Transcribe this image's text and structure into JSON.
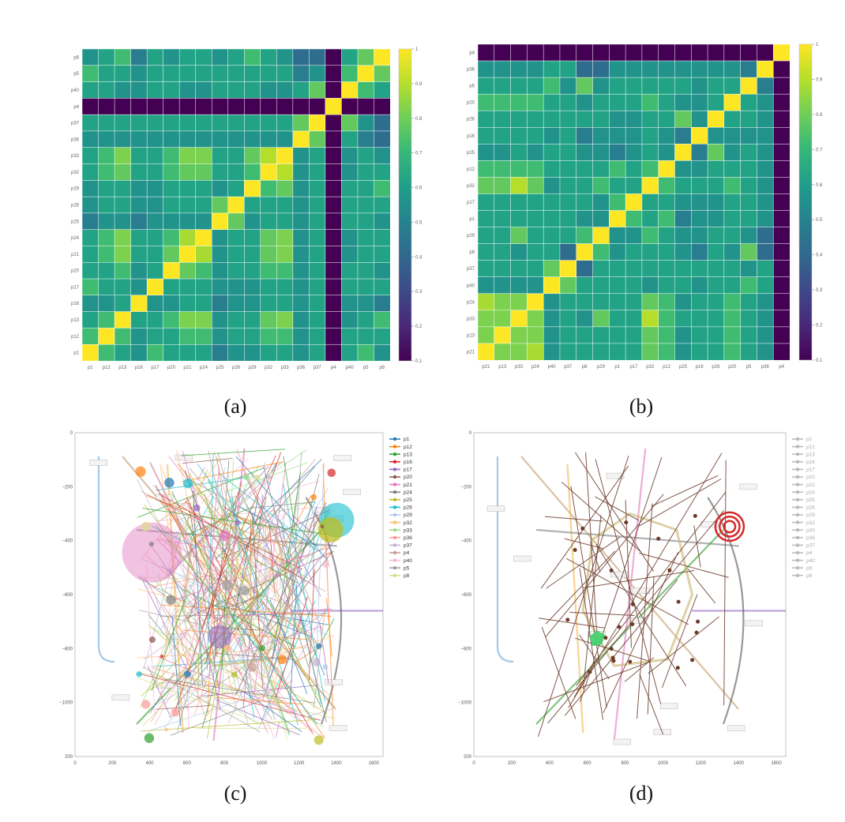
{
  "captions": {
    "a": "(a)",
    "b": "(b)",
    "c": "(c)",
    "d": "(d)"
  },
  "colormap": [
    "#440154",
    "#482878",
    "#3e4989",
    "#31688e",
    "#26828e",
    "#1f9e89",
    "#35b779",
    "#6ece58",
    "#b5de2b",
    "#fde725"
  ],
  "chart_data": [
    {
      "type": "heatmap",
      "x_labels": [
        "p1",
        "p12",
        "p13",
        "p16",
        "p17",
        "p20",
        "p21",
        "p24",
        "p25",
        "p26",
        "p29",
        "p32",
        "p33",
        "p36",
        "p37",
        "p4",
        "p40",
        "p5",
        "p8"
      ],
      "y_labels": [
        "p8",
        "p5",
        "p40",
        "p4",
        "p37",
        "p36",
        "p33",
        "p32",
        "p29",
        "p26",
        "p25",
        "p24",
        "p21",
        "p20",
        "p17",
        "p16",
        "p13",
        "p12",
        "p1"
      ],
      "colorbar": {
        "min": 0.1,
        "max": 1,
        "ticks": [
          "1",
          "0.9",
          "0.8",
          "0.7",
          "0.6",
          "0.5",
          "0.4",
          "0.3",
          "0.2",
          "0.1"
        ]
      },
      "values": [
        [
          0.56,
          0.62,
          0.72,
          0.48,
          0.62,
          0.56,
          0.62,
          0.62,
          0.56,
          0.62,
          0.72,
          0.62,
          0.56,
          0.42,
          0.42,
          0.1,
          0.62,
          0.78,
          1.0
        ],
        [
          0.72,
          0.62,
          0.62,
          0.56,
          0.62,
          0.62,
          0.62,
          0.62,
          0.62,
          0.62,
          0.62,
          0.62,
          0.62,
          0.48,
          0.56,
          0.1,
          0.72,
          1.0,
          0.78
        ],
        [
          0.62,
          0.62,
          0.56,
          0.56,
          0.62,
          0.62,
          0.56,
          0.56,
          0.62,
          0.62,
          0.62,
          0.56,
          0.56,
          0.62,
          0.78,
          0.1,
          1.0,
          0.72,
          0.62
        ],
        [
          0.1,
          0.1,
          0.1,
          0.1,
          0.1,
          0.1,
          0.1,
          0.1,
          0.1,
          0.1,
          0.1,
          0.1,
          0.1,
          0.1,
          0.1,
          1.0,
          0.1,
          0.1,
          0.1
        ],
        [
          0.62,
          0.62,
          0.62,
          0.62,
          0.62,
          0.62,
          0.62,
          0.62,
          0.62,
          0.62,
          0.62,
          0.62,
          0.62,
          0.78,
          1.0,
          0.1,
          0.78,
          0.56,
          0.42
        ],
        [
          0.56,
          0.56,
          0.56,
          0.56,
          0.56,
          0.56,
          0.56,
          0.56,
          0.56,
          0.56,
          0.56,
          0.56,
          0.56,
          1.0,
          0.78,
          0.1,
          0.62,
          0.48,
          0.42
        ],
        [
          0.62,
          0.72,
          0.82,
          0.62,
          0.62,
          0.72,
          0.82,
          0.82,
          0.62,
          0.62,
          0.78,
          0.9,
          1.0,
          0.56,
          0.62,
          0.1,
          0.56,
          0.62,
          0.56
        ],
        [
          0.62,
          0.72,
          0.78,
          0.62,
          0.62,
          0.72,
          0.78,
          0.78,
          0.62,
          0.62,
          0.72,
          1.0,
          0.9,
          0.56,
          0.62,
          0.1,
          0.56,
          0.62,
          0.62
        ],
        [
          0.56,
          0.62,
          0.62,
          0.56,
          0.56,
          0.62,
          0.62,
          0.62,
          0.56,
          0.62,
          1.0,
          0.72,
          0.78,
          0.56,
          0.62,
          0.1,
          0.62,
          0.62,
          0.72
        ],
        [
          0.56,
          0.62,
          0.62,
          0.56,
          0.56,
          0.62,
          0.62,
          0.62,
          0.78,
          1.0,
          0.62,
          0.62,
          0.62,
          0.56,
          0.62,
          0.1,
          0.62,
          0.62,
          0.62
        ],
        [
          0.48,
          0.56,
          0.56,
          0.48,
          0.56,
          0.56,
          0.56,
          0.56,
          1.0,
          0.78,
          0.56,
          0.62,
          0.62,
          0.56,
          0.62,
          0.1,
          0.62,
          0.62,
          0.56
        ],
        [
          0.62,
          0.72,
          0.82,
          0.62,
          0.62,
          0.72,
          0.88,
          1.0,
          0.56,
          0.62,
          0.62,
          0.78,
          0.82,
          0.56,
          0.62,
          0.1,
          0.56,
          0.62,
          0.62
        ],
        [
          0.62,
          0.72,
          0.82,
          0.62,
          0.62,
          0.78,
          1.0,
          0.88,
          0.56,
          0.62,
          0.62,
          0.78,
          0.82,
          0.56,
          0.62,
          0.1,
          0.56,
          0.62,
          0.62
        ],
        [
          0.62,
          0.62,
          0.72,
          0.56,
          0.62,
          1.0,
          0.78,
          0.72,
          0.56,
          0.62,
          0.62,
          0.72,
          0.72,
          0.56,
          0.62,
          0.1,
          0.62,
          0.62,
          0.56
        ],
        [
          0.72,
          0.62,
          0.62,
          0.56,
          1.0,
          0.62,
          0.62,
          0.62,
          0.56,
          0.56,
          0.56,
          0.62,
          0.62,
          0.56,
          0.62,
          0.1,
          0.62,
          0.62,
          0.62
        ],
        [
          0.56,
          0.56,
          0.62,
          1.0,
          0.56,
          0.56,
          0.62,
          0.62,
          0.48,
          0.56,
          0.56,
          0.62,
          0.62,
          0.56,
          0.62,
          0.1,
          0.56,
          0.56,
          0.48
        ],
        [
          0.62,
          0.72,
          1.0,
          0.62,
          0.62,
          0.72,
          0.82,
          0.82,
          0.56,
          0.62,
          0.62,
          0.78,
          0.82,
          0.56,
          0.62,
          0.1,
          0.56,
          0.62,
          0.72
        ],
        [
          0.72,
          1.0,
          0.72,
          0.56,
          0.62,
          0.62,
          0.72,
          0.72,
          0.56,
          0.62,
          0.62,
          0.72,
          0.72,
          0.56,
          0.62,
          0.1,
          0.62,
          0.62,
          0.62
        ],
        [
          1.0,
          0.72,
          0.62,
          0.56,
          0.72,
          0.62,
          0.62,
          0.62,
          0.48,
          0.56,
          0.56,
          0.62,
          0.62,
          0.56,
          0.62,
          0.1,
          0.62,
          0.72,
          0.56
        ]
      ]
    },
    {
      "type": "heatmap",
      "x_labels": [
        "p21",
        "p13",
        "p33",
        "p24",
        "p40",
        "p37",
        "p8",
        "p29",
        "p1",
        "p17",
        "p32",
        "p12",
        "p25",
        "p16",
        "p26",
        "p20",
        "p5",
        "p36",
        "p4"
      ],
      "y_labels": [
        "p4",
        "p36",
        "p5",
        "p20",
        "p26",
        "p16",
        "p25",
        "p12",
        "p32",
        "p17",
        "p1",
        "p29",
        "p8",
        "p37",
        "p40",
        "p24",
        "p33",
        "p13",
        "p21"
      ],
      "colorbar": {
        "min": 0.1,
        "max": 1,
        "ticks": [
          "1",
          "0.9",
          "0.8",
          "0.7",
          "0.6",
          "0.5",
          "0.4",
          "0.3",
          "0.2",
          "0.1"
        ]
      },
      "values": [
        [
          0.1,
          0.1,
          0.1,
          0.1,
          0.1,
          0.1,
          0.1,
          0.1,
          0.1,
          0.1,
          0.1,
          0.1,
          0.1,
          0.1,
          0.1,
          0.1,
          0.1,
          0.1,
          1.0
        ],
        [
          0.56,
          0.56,
          0.56,
          0.56,
          0.62,
          0.62,
          0.42,
          0.42,
          0.56,
          0.56,
          0.56,
          0.56,
          0.56,
          0.56,
          0.56,
          0.56,
          0.48,
          1.0,
          0.1
        ],
        [
          0.62,
          0.62,
          0.62,
          0.62,
          0.72,
          0.56,
          0.78,
          0.56,
          0.62,
          0.62,
          0.62,
          0.62,
          0.62,
          0.56,
          0.62,
          0.62,
          1.0,
          0.48,
          0.1
        ],
        [
          0.72,
          0.72,
          0.72,
          0.72,
          0.62,
          0.62,
          0.56,
          0.62,
          0.62,
          0.62,
          0.72,
          0.62,
          0.56,
          0.56,
          0.62,
          1.0,
          0.62,
          0.56,
          0.1
        ],
        [
          0.62,
          0.62,
          0.62,
          0.62,
          0.62,
          0.62,
          0.62,
          0.62,
          0.56,
          0.56,
          0.62,
          0.62,
          0.78,
          0.56,
          1.0,
          0.62,
          0.62,
          0.56,
          0.1
        ],
        [
          0.62,
          0.62,
          0.62,
          0.62,
          0.56,
          0.62,
          0.48,
          0.56,
          0.56,
          0.56,
          0.62,
          0.56,
          0.48,
          1.0,
          0.56,
          0.56,
          0.56,
          0.56,
          0.1
        ],
        [
          0.56,
          0.56,
          0.62,
          0.56,
          0.62,
          0.62,
          0.56,
          0.56,
          0.48,
          0.56,
          0.62,
          0.56,
          1.0,
          0.48,
          0.78,
          0.56,
          0.62,
          0.56,
          0.1
        ],
        [
          0.72,
          0.72,
          0.72,
          0.72,
          0.62,
          0.62,
          0.62,
          0.62,
          0.72,
          0.62,
          0.72,
          1.0,
          0.56,
          0.56,
          0.62,
          0.62,
          0.62,
          0.56,
          0.1
        ],
        [
          0.78,
          0.78,
          0.9,
          0.78,
          0.56,
          0.62,
          0.62,
          0.72,
          0.62,
          0.62,
          1.0,
          0.72,
          0.62,
          0.62,
          0.62,
          0.72,
          0.62,
          0.56,
          0.1
        ],
        [
          0.62,
          0.62,
          0.62,
          0.62,
          0.62,
          0.62,
          0.62,
          0.56,
          0.72,
          1.0,
          0.62,
          0.62,
          0.56,
          0.56,
          0.56,
          0.62,
          0.62,
          0.56,
          0.1
        ],
        [
          0.62,
          0.62,
          0.62,
          0.62,
          0.62,
          0.62,
          0.56,
          0.56,
          1.0,
          0.72,
          0.62,
          0.72,
          0.48,
          0.56,
          0.56,
          0.62,
          0.62,
          0.56,
          0.1
        ],
        [
          0.62,
          0.62,
          0.78,
          0.62,
          0.62,
          0.62,
          0.72,
          1.0,
          0.56,
          0.56,
          0.72,
          0.62,
          0.56,
          0.56,
          0.62,
          0.62,
          0.56,
          0.42,
          0.1
        ],
        [
          0.62,
          0.62,
          0.56,
          0.62,
          0.62,
          0.42,
          1.0,
          0.72,
          0.56,
          0.62,
          0.62,
          0.62,
          0.56,
          0.48,
          0.62,
          0.56,
          0.78,
          0.42,
          0.1
        ],
        [
          0.62,
          0.62,
          0.62,
          0.62,
          0.78,
          1.0,
          0.42,
          0.62,
          0.62,
          0.62,
          0.62,
          0.62,
          0.62,
          0.62,
          0.62,
          0.62,
          0.56,
          0.62,
          0.1
        ],
        [
          0.56,
          0.56,
          0.56,
          0.56,
          1.0,
          0.78,
          0.62,
          0.62,
          0.62,
          0.62,
          0.56,
          0.62,
          0.62,
          0.56,
          0.62,
          0.62,
          0.72,
          0.62,
          0.1
        ],
        [
          0.88,
          0.82,
          0.82,
          1.0,
          0.56,
          0.62,
          0.62,
          0.62,
          0.62,
          0.62,
          0.78,
          0.72,
          0.56,
          0.62,
          0.62,
          0.72,
          0.62,
          0.56,
          0.1
        ],
        [
          0.82,
          0.82,
          1.0,
          0.82,
          0.56,
          0.62,
          0.56,
          0.78,
          0.62,
          0.62,
          0.9,
          0.72,
          0.62,
          0.62,
          0.62,
          0.72,
          0.62,
          0.56,
          0.1
        ],
        [
          0.82,
          1.0,
          0.82,
          0.82,
          0.56,
          0.62,
          0.62,
          0.62,
          0.62,
          0.62,
          0.78,
          0.72,
          0.56,
          0.62,
          0.62,
          0.72,
          0.62,
          0.56,
          0.1
        ],
        [
          1.0,
          0.82,
          0.82,
          0.88,
          0.56,
          0.62,
          0.62,
          0.62,
          0.62,
          0.62,
          0.78,
          0.72,
          0.56,
          0.62,
          0.62,
          0.72,
          0.62,
          0.56,
          0.1
        ]
      ]
    },
    {
      "type": "scatter",
      "x_ticks": [
        "0",
        "200",
        "400",
        "600",
        "800",
        "1000",
        "1200",
        "1400",
        "1600"
      ],
      "y_ticks": [
        "0",
        "−200",
        "−400",
        "−600",
        "−800",
        "−1000",
        "200"
      ],
      "xlim": [
        0,
        1650
      ],
      "ylim": [
        -1200,
        0
      ],
      "legend": [
        "p1",
        "p12",
        "p13",
        "p16",
        "p17",
        "p20",
        "p21",
        "p24",
        "p25",
        "p26",
        "p29",
        "p32",
        "p33",
        "p36",
        "p37",
        "p4",
        "p40",
        "p5",
        "p8"
      ],
      "legend_position": "right"
    },
    {
      "type": "scatter",
      "x_ticks": [
        "0",
        "200",
        "400",
        "600",
        "800",
        "1000",
        "1200",
        "1400",
        "1600"
      ],
      "y_ticks": [
        "0",
        "−200",
        "−400",
        "−600",
        "−800",
        "−1000",
        "200"
      ],
      "xlim": [
        0,
        1650
      ],
      "ylim": [
        -1200,
        0
      ],
      "legend": [
        "p1",
        "p12",
        "p13",
        "p16",
        "p17",
        "p20",
        "p21",
        "p24",
        "p25",
        "p26",
        "p29",
        "p32",
        "p33",
        "p36",
        "p37",
        "p4",
        "p40",
        "p5",
        "p8"
      ],
      "legend_position": "right"
    }
  ]
}
